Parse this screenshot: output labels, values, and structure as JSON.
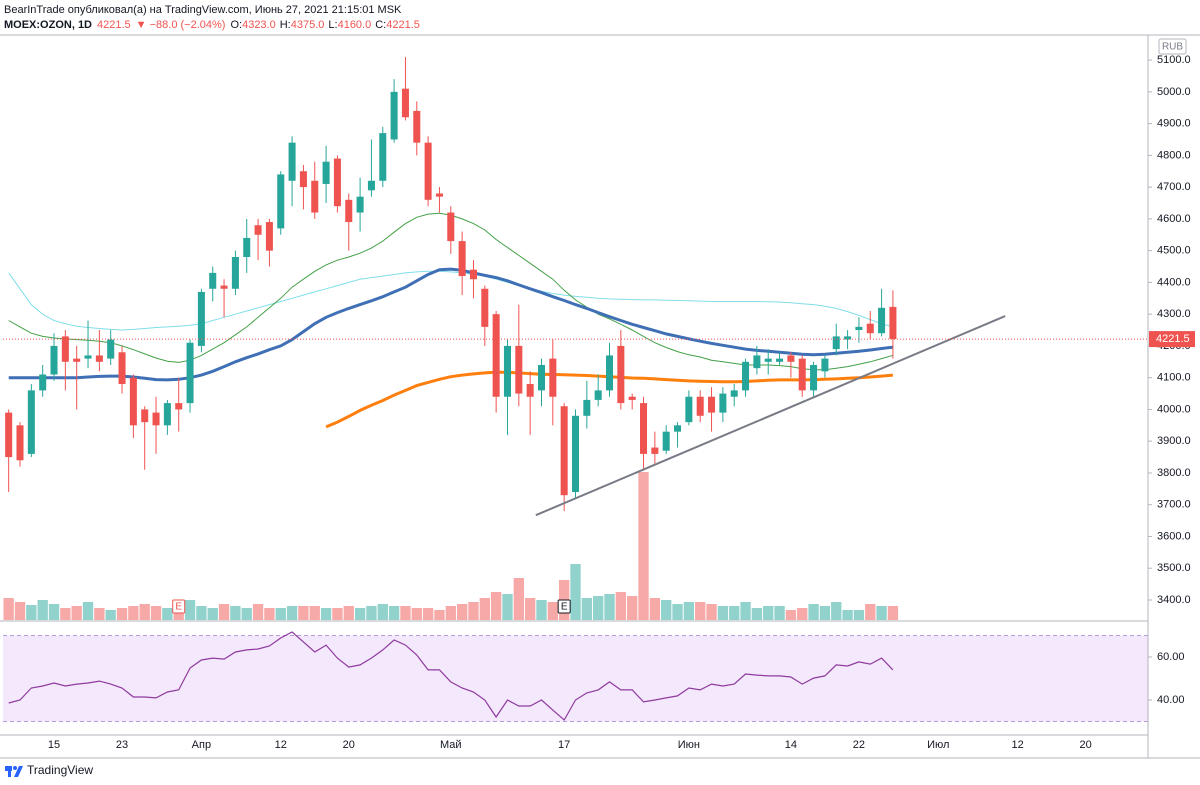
{
  "chart_data": {
    "type": "candlestick",
    "header": {
      "publisher": "BearInTrade опубликовал(а) на TradingView.com, Июнь 27, 2021 21:15:01 MSK",
      "symbol": "MOEX:OZON, 1D",
      "last": "4221.5",
      "change": "▼ −88.0 (−2.04%)",
      "o_label": "O:",
      "o": "4323.0",
      "h_label": "H:",
      "h": "4375.0",
      "l_label": "L:",
      "l": "4160.0",
      "c_label": "C:",
      "c": "4221.5"
    },
    "currency": "RUB",
    "brand": "TradingView",
    "categories": [
      null,
      null,
      null,
      null,
      "15",
      null,
      null,
      null,
      null,
      null,
      "23",
      null,
      null,
      null,
      null,
      null,
      null,
      "Апр",
      null,
      null,
      null,
      null,
      null,
      null,
      "12",
      null,
      null,
      null,
      null,
      null,
      "20",
      null,
      null,
      null,
      null,
      null,
      null,
      null,
      null,
      "Май",
      null,
      null,
      null,
      null,
      null,
      null,
      null,
      null,
      null,
      "17",
      null,
      null,
      null,
      null,
      null,
      null,
      null,
      null,
      null,
      null,
      "Июн",
      null,
      null,
      null,
      null,
      null,
      null,
      null,
      null,
      "14",
      null,
      null,
      null,
      null,
      null,
      "22",
      null,
      null,
      null,
      null,
      null,
      null,
      "Июл",
      null,
      null,
      null,
      null,
      null,
      null,
      "12",
      null,
      null,
      null,
      null,
      null,
      "20",
      null,
      null,
      null,
      null,
      null
    ],
    "open": [
      3990,
      3950,
      3860,
      4060,
      4110,
      4230,
      4160,
      4160,
      4170,
      4160,
      4180,
      4100,
      4000,
      3990,
      3950,
      4020,
      4020,
      4200,
      4380,
      4390,
      4380,
      4480,
      4580,
      4590,
      4570,
      4720,
      4750,
      4720,
      4710,
      4790,
      4660,
      4620,
      4690,
      4720,
      4850,
      5010,
      4940,
      4840,
      4680,
      4620,
      4530,
      4440,
      4380,
      4300,
      4040,
      4200,
      4080,
      4060,
      4160,
      4010,
      3740,
      3980,
      4030,
      4060,
      4200,
      4040,
      4020,
      3880,
      3870,
      3930,
      3960,
      4040,
      4040,
      3990,
      4040,
      4060,
      4130,
      4150,
      4150,
      4170,
      4160,
      4060,
      4120,
      4190,
      4220,
      4250,
      4270,
      4240,
      4323,
      null,
      null,
      null,
      null,
      null,
      null,
      null,
      null,
      null,
      null,
      null,
      null,
      null,
      null,
      null,
      null,
      null,
      null,
      null,
      null,
      null,
      null
    ],
    "high": [
      4000,
      3960,
      4080,
      4140,
      4240,
      4250,
      4200,
      4280,
      4250,
      4250,
      4200,
      4110,
      4010,
      4040,
      4030,
      4100,
      4220,
      4380,
      4450,
      4410,
      4500,
      4600,
      4600,
      4600,
      4750,
      4860,
      4770,
      4780,
      4830,
      4800,
      4680,
      4730,
      4850,
      4890,
      5040,
      5110,
      4970,
      4860,
      4700,
      4640,
      4560,
      4470,
      4390,
      4310,
      4220,
      4330,
      4120,
      4160,
      4220,
      4020,
      4000,
      4090,
      4110,
      4210,
      4250,
      4050,
      4040,
      3930,
      3950,
      3960,
      4060,
      4060,
      4070,
      4070,
      4080,
      4160,
      4200,
      4190,
      4180,
      4180,
      4170,
      4150,
      4170,
      4270,
      4250,
      4290,
      4310,
      4380,
      4375,
      null,
      null,
      null,
      null,
      null,
      null,
      null,
      null,
      null,
      null,
      null,
      null,
      null,
      null,
      null,
      null,
      null,
      null,
      null,
      null,
      null,
      null
    ],
    "low": [
      3740,
      3820,
      3850,
      4040,
      4090,
      4060,
      4000,
      4130,
      4120,
      4140,
      4050,
      3910,
      3810,
      3860,
      3920,
      3930,
      3990,
      4180,
      4340,
      4290,
      4360,
      4430,
      4470,
      4450,
      4550,
      4640,
      4630,
      4600,
      4650,
      4620,
      4500,
      4560,
      4670,
      4700,
      4840,
      4910,
      4800,
      4640,
      4620,
      4490,
      4360,
      4350,
      4200,
      3990,
      3920,
      4010,
      3920,
      4010,
      3950,
      3680,
      3720,
      3940,
      4010,
      4040,
      4000,
      4000,
      3810,
      3830,
      3860,
      3880,
      3950,
      3960,
      3930,
      3960,
      4010,
      4040,
      4110,
      4110,
      4140,
      4100,
      4040,
      4040,
      4100,
      4170,
      4190,
      4210,
      4220,
      4230,
      4160,
      null,
      null,
      null,
      null,
      null,
      null,
      null,
      null,
      null,
      null,
      null,
      null,
      null,
      null,
      null,
      null,
      null,
      null,
      null,
      null,
      null,
      null
    ],
    "close": [
      3850,
      3840,
      4060,
      4110,
      4200,
      4150,
      4150,
      4170,
      4150,
      4220,
      4080,
      3950,
      3960,
      3950,
      4020,
      4000,
      4210,
      4370,
      4430,
      4380,
      4480,
      4540,
      4550,
      4500,
      4740,
      4840,
      4700,
      4620,
      4780,
      4640,
      4590,
      4670,
      4720,
      4870,
      5000,
      4920,
      4840,
      4660,
      4670,
      4530,
      4420,
      4410,
      4260,
      4040,
      4200,
      4050,
      4040,
      4140,
      4040,
      3730,
      3980,
      4030,
      4060,
      4170,
      4020,
      4030,
      3860,
      3860,
      3930,
      3950,
      4040,
      3980,
      3990,
      4050,
      4060,
      4150,
      4170,
      4160,
      4160,
      4150,
      4060,
      4140,
      4160,
      4230,
      4230,
      4260,
      4240,
      4320,
      4221.5,
      null,
      null,
      null,
      null,
      null,
      null,
      null,
      null,
      null,
      null,
      null,
      null,
      null,
      null,
      null,
      null,
      null,
      null,
      null,
      null,
      null,
      null
    ],
    "up_color": "#26a69a",
    "down_color": "#ef5350",
    "ylim": [
      3337,
      5179
    ],
    "yticks": [
      {
        "value": 3400,
        "label": "3400.0"
      },
      {
        "value": 3500,
        "label": "3500.0"
      },
      {
        "value": 3600,
        "label": "3600.0"
      },
      {
        "value": 3700,
        "label": "3700.0"
      },
      {
        "value": 3800,
        "label": "3800.0"
      },
      {
        "value": 3900,
        "label": "3900.0"
      },
      {
        "value": 4000,
        "label": "4000.0"
      },
      {
        "value": 4100,
        "label": "4100.0"
      },
      {
        "value": 4200,
        "label": "4200.0"
      },
      {
        "value": 4300,
        "label": "4300.0"
      },
      {
        "value": 4400,
        "label": "4400.0"
      },
      {
        "value": 4500,
        "label": "4500.0"
      },
      {
        "value": 4600,
        "label": "4600.0"
      },
      {
        "value": 4700,
        "label": "4700.0"
      },
      {
        "value": 4800,
        "label": "4800.0"
      },
      {
        "value": 4900,
        "label": "4900.0"
      },
      {
        "value": 5000,
        "label": "5000.0"
      },
      {
        "value": 5100,
        "label": "5100.0"
      }
    ],
    "grid": false,
    "moving_averages": [
      {
        "color": "#80deea",
        "width": 1,
        "values": [
          4430,
          4380,
          4330,
          4300,
          4280,
          4270,
          4262,
          4258,
          4255,
          4252,
          4250,
          4252,
          4255,
          4258,
          4260,
          4262,
          4265,
          4270,
          4280,
          4290,
          4300,
          4310,
          4320,
          4330,
          4340,
          4350,
          4360,
          4370,
          4380,
          4390,
          4400,
          4410,
          4415,
          4420,
          4425,
          4430,
          4433,
          4435,
          4435,
          4433,
          4430,
          4425,
          4420,
          4410,
          4400,
          4390,
          4380,
          4372,
          4365,
          4360,
          4356,
          4353,
          4350,
          4348,
          4347,
          4346,
          4345,
          4345,
          4344,
          4343,
          4342,
          4341,
          4340,
          4340,
          4340,
          4340,
          4340,
          4339,
          4338,
          4336,
          4333,
          4330,
          4325,
          4318,
          4308,
          4296,
          4283,
          4270,
          4260,
          null,
          null,
          null,
          null,
          null,
          null,
          null,
          null,
          null,
          null,
          null,
          null,
          null,
          null,
          null,
          null,
          null,
          null,
          null,
          null,
          null,
          null
        ]
      },
      {
        "color": "#43a047",
        "width": 1,
        "values": [
          4280,
          4260,
          4240,
          4230,
          4225,
          4222,
          4220,
          4218,
          4215,
          4210,
          4200,
          4188,
          4175,
          4162,
          4152,
          4148,
          4155,
          4170,
          4190,
          4210,
          4235,
          4260,
          4290,
          4320,
          4350,
          4385,
          4410,
          4435,
          4455,
          4470,
          4480,
          4492,
          4508,
          4530,
          4558,
          4585,
          4605,
          4615,
          4618,
          4612,
          4600,
          4585,
          4565,
          4535,
          4510,
          4485,
          4460,
          4435,
          4410,
          4375,
          4345,
          4322,
          4300,
          4285,
          4268,
          4250,
          4230,
          4210,
          4195,
          4182,
          4172,
          4165,
          4155,
          4150,
          4145,
          4140,
          4140,
          4140,
          4138,
          4135,
          4128,
          4125,
          4125,
          4130,
          4135,
          4142,
          4150,
          4160,
          4170,
          null,
          null,
          null,
          null,
          null,
          null,
          null,
          null,
          null,
          null,
          null,
          null,
          null,
          null,
          null,
          null,
          null,
          null,
          null,
          null,
          null,
          null
        ]
      },
      {
        "color": "#ff7f0e",
        "width": 3,
        "values": [
          null,
          null,
          null,
          null,
          null,
          null,
          null,
          null,
          null,
          null,
          null,
          null,
          null,
          null,
          null,
          null,
          null,
          null,
          null,
          null,
          null,
          null,
          null,
          null,
          null,
          null,
          null,
          null,
          3945,
          3960,
          3978,
          3997,
          4013,
          4028,
          4045,
          4060,
          4075,
          4085,
          4095,
          4103,
          4108,
          4112,
          4115,
          4117,
          4117,
          4115,
          4113,
          4111,
          4110,
          4109,
          4108,
          4107,
          4105,
          4103,
          4101,
          4099,
          4098,
          4096,
          4094,
          4092,
          4090,
          4089,
          4088,
          4087,
          4087,
          4088,
          4090,
          4092,
          4093,
          4093,
          4093,
          4094,
          4095,
          4096,
          4098,
          4100,
          4102,
          4105,
          4108,
          null,
          null,
          null,
          null,
          null,
          null,
          null,
          null,
          null,
          null,
          null,
          null,
          null,
          null,
          null,
          null,
          null,
          null,
          null,
          null,
          null,
          null
        ]
      },
      {
        "color": "#3f6fb5",
        "width": 3,
        "values": [
          4100,
          4100,
          4100,
          4100,
          4100,
          4100,
          4100,
          4102,
          4104,
          4105,
          4105,
          4102,
          4098,
          4094,
          4093,
          4095,
          4100,
          4108,
          4120,
          4135,
          4150,
          4163,
          4175,
          4188,
          4200,
          4220,
          4245,
          4270,
          4290,
          4305,
          4318,
          4330,
          4342,
          4355,
          4370,
          4385,
          4405,
          4425,
          4440,
          4442,
          4438,
          4430,
          4422,
          4415,
          4405,
          4392,
          4380,
          4368,
          4355,
          4343,
          4330,
          4318,
          4305,
          4292,
          4280,
          4268,
          4258,
          4248,
          4238,
          4230,
          4222,
          4215,
          4208,
          4202,
          4196,
          4190,
          4186,
          4183,
          4180,
          4177,
          4174,
          4172,
          4174,
          4177,
          4180,
          4183,
          4187,
          4192,
          4196,
          null,
          null,
          null,
          null,
          null,
          null,
          null,
          null,
          null,
          null,
          null,
          null,
          null,
          null,
          null,
          null,
          null,
          null,
          null,
          null,
          null,
          null
        ]
      }
    ],
    "trendline": {
      "x": [
        46.5,
        87.9
      ],
      "y": [
        3667,
        4294
      ],
      "color": "#787b86"
    },
    "volume": {
      "values": [
        22,
        18,
        15,
        20,
        16,
        12,
        14,
        18,
        12,
        10,
        12,
        14,
        16,
        14,
        12,
        14,
        20,
        14,
        12,
        16,
        14,
        12,
        16,
        12,
        12,
        14,
        14,
        14,
        12,
        12,
        14,
        12,
        14,
        16,
        14,
        14,
        12,
        12,
        10,
        14,
        16,
        18,
        22,
        28,
        26,
        42,
        22,
        20,
        18,
        40,
        56,
        22,
        24,
        26,
        28,
        24,
        148,
        22,
        20,
        16,
        18,
        18,
        16,
        14,
        14,
        18,
        12,
        14,
        14,
        10,
        12,
        16,
        14,
        18,
        10,
        10,
        16,
        14,
        14,
        null,
        null,
        null,
        null,
        null,
        null,
        null,
        null,
        null,
        null,
        null,
        null,
        null,
        null,
        null,
        null,
        null,
        null,
        null,
        null,
        null,
        null
      ],
      "up_color": "rgba(38,166,154,0.5)",
      "down_color": "rgba(239,83,80,0.5)"
    },
    "events": [
      {
        "index": 15,
        "label": "E",
        "color": "#ef5350"
      },
      {
        "index": 49,
        "label": "E",
        "color": "#131722"
      }
    ],
    "rsi": {
      "values": [
        38.6,
        40,
        45.6,
        46.5,
        47.9,
        46.5,
        47.4,
        47.9,
        48.8,
        47.4,
        45.6,
        41.4,
        41.4,
        41,
        43.7,
        44.7,
        54.9,
        58.6,
        59.5,
        59,
        62.3,
        63.3,
        63.7,
        65.1,
        68.8,
        71.6,
        67,
        62.3,
        65.5,
        59.5,
        55.3,
        56.3,
        59.5,
        63.3,
        67.9,
        65.5,
        60.9,
        54,
        54,
        48.4,
        45.6,
        43.7,
        40,
        32.1,
        40,
        37.2,
        37.2,
        40,
        35.3,
        30.7,
        40,
        43.3,
        44.7,
        48.4,
        44.7,
        44.7,
        39.1,
        40,
        41,
        41.9,
        45.6,
        44.7,
        47.4,
        46.5,
        47.4,
        52.1,
        51.6,
        51.2,
        51.2,
        50.7,
        47.4,
        50.2,
        51.2,
        56.3,
        55.8,
        57.7,
        56.7,
        59.5,
        54,
        null,
        null,
        null,
        null,
        null,
        null,
        null,
        null,
        null,
        null,
        null,
        null,
        null,
        null,
        null,
        null,
        null,
        null,
        null,
        null,
        null,
        null
      ],
      "color": "#8e3a9e",
      "ylim": [
        24.2,
        74.4
      ],
      "yticks": [
        {
          "value": 40,
          "label": "40.00"
        },
        {
          "value": 60,
          "label": "60.00"
        }
      ],
      "levels": [
        30,
        70
      ],
      "band_color": "rgba(200,140,240,0.2)"
    }
  }
}
